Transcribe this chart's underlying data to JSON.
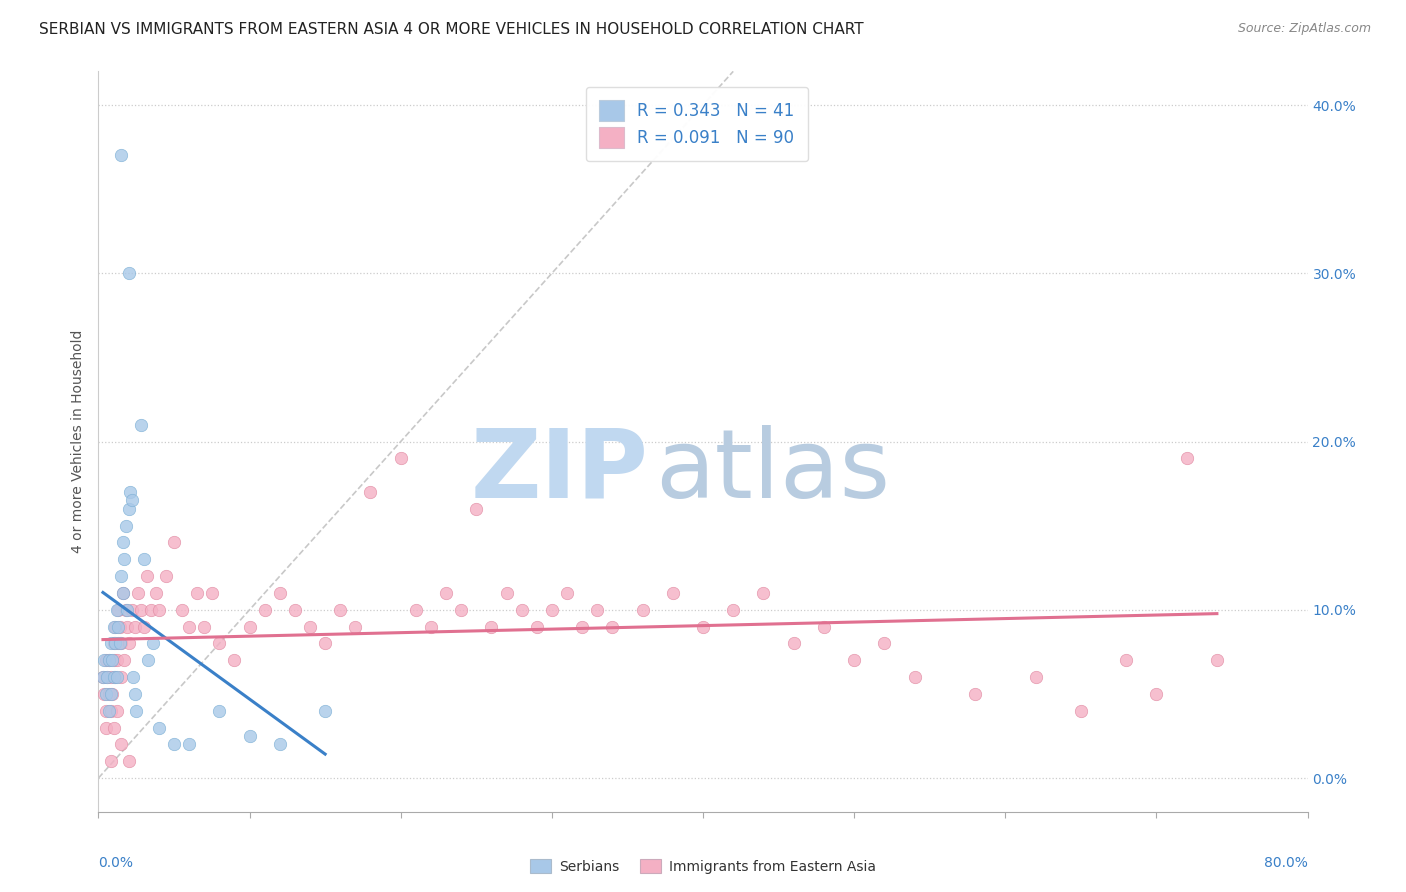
{
  "title": "SERBIAN VS IMMIGRANTS FROM EASTERN ASIA 4 OR MORE VEHICLES IN HOUSEHOLD CORRELATION CHART",
  "source": "Source: ZipAtlas.com",
  "ylabel": "4 or more Vehicles in Household",
  "xlim": [
    0.0,
    0.8
  ],
  "ylim": [
    -0.02,
    0.42
  ],
  "series1_name": "Serbians",
  "series1_color": "#a8c8e8",
  "series1_edge_color": "#7aaed4",
  "series1_line_color": "#3a80c8",
  "series1_R": 0.343,
  "series1_N": 41,
  "series2_name": "Immigrants from Eastern Asia",
  "series2_color": "#f4b0c4",
  "series2_edge_color": "#e088a0",
  "series2_line_color": "#e07090",
  "series2_R": 0.091,
  "series2_N": 90,
  "diagonal_line_color": "#c8c8c8",
  "watermark_zip_color": "#c0d8f0",
  "watermark_atlas_color": "#b8cce0",
  "background_color": "#ffffff",
  "legend_text_color": "#3a80c8",
  "title_fontsize": 11,
  "source_fontsize": 9,
  "axis_label_fontsize": 10,
  "legend_fontsize": 12,
  "tick_label_fontsize": 10,
  "s1_x": [
    0.003,
    0.004,
    0.005,
    0.006,
    0.007,
    0.007,
    0.008,
    0.008,
    0.009,
    0.01,
    0.01,
    0.011,
    0.012,
    0.012,
    0.013,
    0.014,
    0.015,
    0.016,
    0.016,
    0.017,
    0.018,
    0.019,
    0.02,
    0.021,
    0.022,
    0.023,
    0.024,
    0.025,
    0.028,
    0.03,
    0.033,
    0.036,
    0.04,
    0.05,
    0.06,
    0.08,
    0.1,
    0.12,
    0.15,
    0.015,
    0.02
  ],
  "s1_y": [
    0.06,
    0.07,
    0.05,
    0.06,
    0.07,
    0.04,
    0.08,
    0.05,
    0.07,
    0.06,
    0.09,
    0.08,
    0.06,
    0.1,
    0.09,
    0.08,
    0.12,
    0.11,
    0.14,
    0.13,
    0.15,
    0.1,
    0.16,
    0.17,
    0.165,
    0.06,
    0.05,
    0.04,
    0.21,
    0.13,
    0.07,
    0.08,
    0.03,
    0.02,
    0.02,
    0.04,
    0.025,
    0.02,
    0.04,
    0.37,
    0.3
  ],
  "s2_x": [
    0.003,
    0.004,
    0.005,
    0.005,
    0.006,
    0.007,
    0.007,
    0.008,
    0.008,
    0.009,
    0.01,
    0.01,
    0.011,
    0.011,
    0.012,
    0.013,
    0.013,
    0.014,
    0.015,
    0.015,
    0.016,
    0.017,
    0.018,
    0.019,
    0.02,
    0.022,
    0.024,
    0.026,
    0.028,
    0.03,
    0.032,
    0.035,
    0.038,
    0.04,
    0.045,
    0.05,
    0.055,
    0.06,
    0.065,
    0.07,
    0.075,
    0.08,
    0.09,
    0.1,
    0.11,
    0.12,
    0.13,
    0.14,
    0.15,
    0.16,
    0.17,
    0.18,
    0.2,
    0.21,
    0.22,
    0.23,
    0.24,
    0.25,
    0.26,
    0.27,
    0.28,
    0.29,
    0.3,
    0.31,
    0.32,
    0.33,
    0.34,
    0.36,
    0.38,
    0.4,
    0.42,
    0.44,
    0.46,
    0.48,
    0.5,
    0.52,
    0.54,
    0.58,
    0.62,
    0.65,
    0.68,
    0.7,
    0.72,
    0.74,
    0.005,
    0.008,
    0.01,
    0.012,
    0.015,
    0.02
  ],
  "s2_y": [
    0.06,
    0.05,
    0.07,
    0.04,
    0.06,
    0.05,
    0.07,
    0.04,
    0.06,
    0.05,
    0.07,
    0.08,
    0.06,
    0.09,
    0.07,
    0.08,
    0.1,
    0.09,
    0.08,
    0.06,
    0.11,
    0.07,
    0.1,
    0.09,
    0.08,
    0.1,
    0.09,
    0.11,
    0.1,
    0.09,
    0.12,
    0.1,
    0.11,
    0.1,
    0.12,
    0.14,
    0.1,
    0.09,
    0.11,
    0.09,
    0.11,
    0.08,
    0.07,
    0.09,
    0.1,
    0.11,
    0.1,
    0.09,
    0.08,
    0.1,
    0.09,
    0.17,
    0.19,
    0.1,
    0.09,
    0.11,
    0.1,
    0.16,
    0.09,
    0.11,
    0.1,
    0.09,
    0.1,
    0.11,
    0.09,
    0.1,
    0.09,
    0.1,
    0.11,
    0.09,
    0.1,
    0.11,
    0.08,
    0.09,
    0.07,
    0.08,
    0.06,
    0.05,
    0.06,
    0.04,
    0.07,
    0.05,
    0.19,
    0.07,
    0.03,
    0.01,
    0.03,
    0.04,
    0.02,
    0.01
  ]
}
